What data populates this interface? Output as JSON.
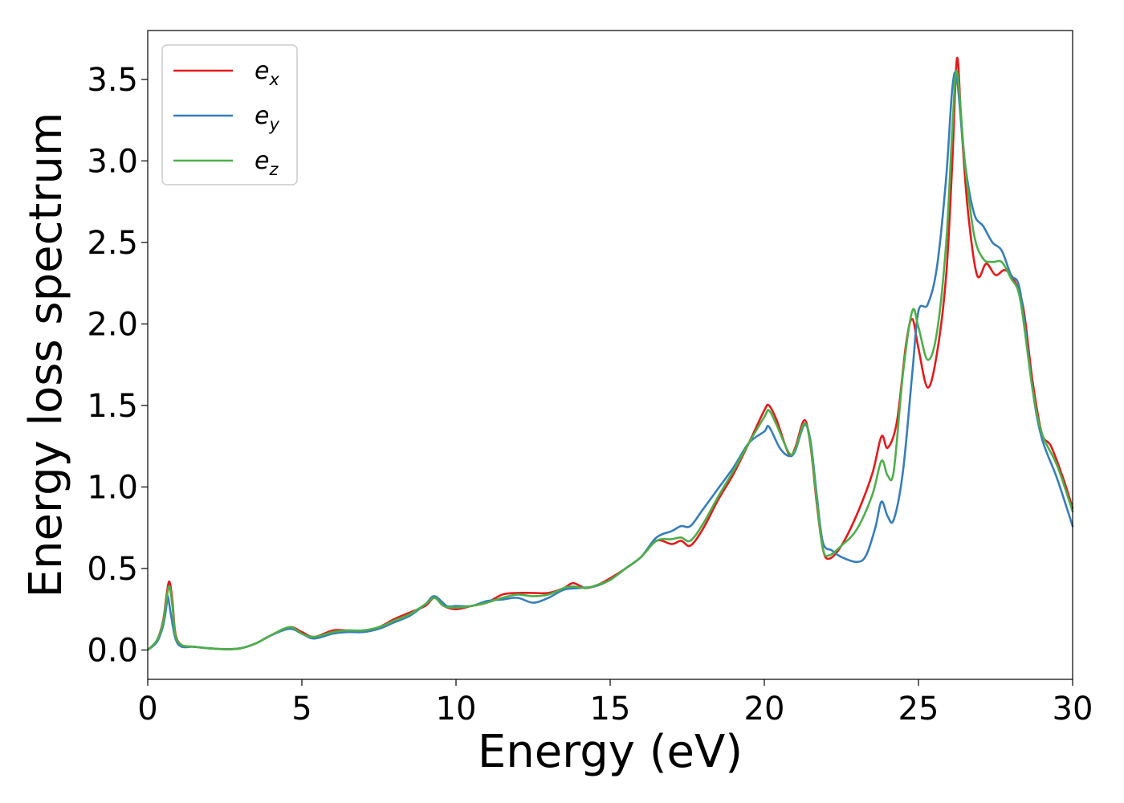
{
  "chart_data": {
    "type": "line",
    "xlabel": "Energy (eV)",
    "ylabel": "Energy loss spectrum",
    "xlim": [
      0,
      30
    ],
    "ylim": [
      -0.18,
      3.8
    ],
    "xticks": [
      0,
      5,
      10,
      15,
      20,
      25,
      30
    ],
    "xtick_labels": [
      "0",
      "5",
      "10",
      "15",
      "20",
      "25",
      "30"
    ],
    "yticks": [
      0.0,
      0.5,
      1.0,
      1.5,
      2.0,
      2.5,
      3.0,
      3.5
    ],
    "ytick_labels": [
      "0.0",
      "0.5",
      "1.0",
      "1.5",
      "2.0",
      "2.5",
      "3.0",
      "3.5"
    ],
    "grid": false,
    "legend": "top-left",
    "series": [
      {
        "name": "e",
        "sub": "x",
        "color": "#e41a1c",
        "points": [
          [
            0,
            0.0
          ],
          [
            0.3,
            0.06
          ],
          [
            0.5,
            0.18
          ],
          [
            0.6,
            0.32
          ],
          [
            0.7,
            0.42
          ],
          [
            0.8,
            0.3
          ],
          [
            0.9,
            0.1
          ],
          [
            1.1,
            0.03
          ],
          [
            1.5,
            0.02
          ],
          [
            2.0,
            0.01
          ],
          [
            2.5,
            0.005
          ],
          [
            3.0,
            0.01
          ],
          [
            3.5,
            0.04
          ],
          [
            4.0,
            0.09
          ],
          [
            4.6,
            0.14
          ],
          [
            5.0,
            0.11
          ],
          [
            5.4,
            0.08
          ],
          [
            6.0,
            0.12
          ],
          [
            6.5,
            0.12
          ],
          [
            7.0,
            0.12
          ],
          [
            7.5,
            0.14
          ],
          [
            8.0,
            0.19
          ],
          [
            8.5,
            0.23
          ],
          [
            9.0,
            0.27
          ],
          [
            9.3,
            0.32
          ],
          [
            9.6,
            0.27
          ],
          [
            10.0,
            0.25
          ],
          [
            10.5,
            0.27
          ],
          [
            11.0,
            0.29
          ],
          [
            11.5,
            0.34
          ],
          [
            12.0,
            0.35
          ],
          [
            12.5,
            0.35
          ],
          [
            13.0,
            0.35
          ],
          [
            13.5,
            0.38
          ],
          [
            13.8,
            0.41
          ],
          [
            14.2,
            0.38
          ],
          [
            14.6,
            0.4
          ],
          [
            15.0,
            0.44
          ],
          [
            15.5,
            0.5
          ],
          [
            16.0,
            0.57
          ],
          [
            16.5,
            0.67
          ],
          [
            17.0,
            0.65
          ],
          [
            17.3,
            0.67
          ],
          [
            17.6,
            0.64
          ],
          [
            18.0,
            0.74
          ],
          [
            18.5,
            0.92
          ],
          [
            19.0,
            1.08
          ],
          [
            19.5,
            1.27
          ],
          [
            20.0,
            1.47
          ],
          [
            20.15,
            1.5
          ],
          [
            20.4,
            1.41
          ],
          [
            20.8,
            1.2
          ],
          [
            21.0,
            1.24
          ],
          [
            21.3,
            1.41
          ],
          [
            21.5,
            1.25
          ],
          [
            21.7,
            0.9
          ],
          [
            21.9,
            0.62
          ],
          [
            22.1,
            0.56
          ],
          [
            22.5,
            0.64
          ],
          [
            23.0,
            0.83
          ],
          [
            23.5,
            1.08
          ],
          [
            23.8,
            1.31
          ],
          [
            24.0,
            1.24
          ],
          [
            24.3,
            1.4
          ],
          [
            24.6,
            1.88
          ],
          [
            24.8,
            2.03
          ],
          [
            25.0,
            1.85
          ],
          [
            25.3,
            1.61
          ],
          [
            25.6,
            1.82
          ],
          [
            25.9,
            2.3
          ],
          [
            26.1,
            3.0
          ],
          [
            26.25,
            3.63
          ],
          [
            26.4,
            3.2
          ],
          [
            26.6,
            2.7
          ],
          [
            26.9,
            2.3
          ],
          [
            27.2,
            2.37
          ],
          [
            27.5,
            2.3
          ],
          [
            27.8,
            2.33
          ],
          [
            28.1,
            2.27
          ],
          [
            28.4,
            2.1
          ],
          [
            28.7,
            1.65
          ],
          [
            29.0,
            1.33
          ],
          [
            29.3,
            1.25
          ],
          [
            29.7,
            1.05
          ],
          [
            30.0,
            0.87
          ]
        ]
      },
      {
        "name": "e",
        "sub": "y",
        "color": "#377eb8",
        "points": [
          [
            0,
            0.0
          ],
          [
            0.3,
            0.05
          ],
          [
            0.5,
            0.15
          ],
          [
            0.6,
            0.26
          ],
          [
            0.65,
            0.33
          ],
          [
            0.75,
            0.22
          ],
          [
            0.9,
            0.07
          ],
          [
            1.1,
            0.02
          ],
          [
            1.5,
            0.02
          ],
          [
            2.0,
            0.01
          ],
          [
            2.5,
            0.005
          ],
          [
            3.0,
            0.01
          ],
          [
            3.5,
            0.04
          ],
          [
            4.0,
            0.09
          ],
          [
            4.6,
            0.13
          ],
          [
            5.0,
            0.1
          ],
          [
            5.4,
            0.07
          ],
          [
            6.0,
            0.1
          ],
          [
            6.5,
            0.11
          ],
          [
            7.0,
            0.11
          ],
          [
            7.5,
            0.13
          ],
          [
            8.0,
            0.17
          ],
          [
            8.5,
            0.21
          ],
          [
            9.0,
            0.28
          ],
          [
            9.3,
            0.33
          ],
          [
            9.7,
            0.27
          ],
          [
            10.0,
            0.27
          ],
          [
            10.5,
            0.27
          ],
          [
            11.0,
            0.3
          ],
          [
            11.5,
            0.31
          ],
          [
            12.0,
            0.32
          ],
          [
            12.5,
            0.29
          ],
          [
            13.0,
            0.32
          ],
          [
            13.5,
            0.37
          ],
          [
            14.0,
            0.38
          ],
          [
            14.5,
            0.39
          ],
          [
            15.0,
            0.43
          ],
          [
            15.5,
            0.5
          ],
          [
            16.0,
            0.57
          ],
          [
            16.5,
            0.69
          ],
          [
            17.0,
            0.73
          ],
          [
            17.3,
            0.76
          ],
          [
            17.6,
            0.76
          ],
          [
            18.0,
            0.86
          ],
          [
            18.5,
            0.99
          ],
          [
            19.0,
            1.12
          ],
          [
            19.5,
            1.27
          ],
          [
            20.0,
            1.34
          ],
          [
            20.15,
            1.37
          ],
          [
            20.5,
            1.24
          ],
          [
            20.8,
            1.19
          ],
          [
            21.0,
            1.22
          ],
          [
            21.3,
            1.38
          ],
          [
            21.5,
            1.28
          ],
          [
            21.7,
            0.95
          ],
          [
            21.9,
            0.66
          ],
          [
            22.2,
            0.61
          ],
          [
            22.5,
            0.57
          ],
          [
            23.0,
            0.54
          ],
          [
            23.3,
            0.58
          ],
          [
            23.6,
            0.75
          ],
          [
            23.8,
            0.91
          ],
          [
            24.0,
            0.82
          ],
          [
            24.2,
            0.8
          ],
          [
            24.5,
            1.1
          ],
          [
            24.8,
            1.7
          ],
          [
            25.0,
            2.08
          ],
          [
            25.3,
            2.12
          ],
          [
            25.6,
            2.35
          ],
          [
            25.9,
            2.9
          ],
          [
            26.1,
            3.45
          ],
          [
            26.25,
            3.5
          ],
          [
            26.5,
            3.0
          ],
          [
            26.8,
            2.68
          ],
          [
            27.1,
            2.6
          ],
          [
            27.4,
            2.5
          ],
          [
            27.7,
            2.45
          ],
          [
            28.0,
            2.3
          ],
          [
            28.3,
            2.2
          ],
          [
            28.7,
            1.6
          ],
          [
            29.0,
            1.3
          ],
          [
            29.5,
            1.05
          ],
          [
            30.0,
            0.76
          ]
        ]
      },
      {
        "name": "e",
        "sub": "z",
        "color": "#4daf4a",
        "points": [
          [
            0,
            0.0
          ],
          [
            0.3,
            0.06
          ],
          [
            0.5,
            0.17
          ],
          [
            0.6,
            0.3
          ],
          [
            0.7,
            0.39
          ],
          [
            0.8,
            0.27
          ],
          [
            0.9,
            0.09
          ],
          [
            1.1,
            0.03
          ],
          [
            1.5,
            0.02
          ],
          [
            2.0,
            0.01
          ],
          [
            2.5,
            0.005
          ],
          [
            3.0,
            0.01
          ],
          [
            3.5,
            0.04
          ],
          [
            4.0,
            0.09
          ],
          [
            4.6,
            0.14
          ],
          [
            5.0,
            0.1
          ],
          [
            5.4,
            0.08
          ],
          [
            6.0,
            0.11
          ],
          [
            6.5,
            0.12
          ],
          [
            7.0,
            0.12
          ],
          [
            7.5,
            0.14
          ],
          [
            8.0,
            0.18
          ],
          [
            8.5,
            0.22
          ],
          [
            9.0,
            0.28
          ],
          [
            9.3,
            0.32
          ],
          [
            9.6,
            0.27
          ],
          [
            10.0,
            0.26
          ],
          [
            10.5,
            0.27
          ],
          [
            11.0,
            0.29
          ],
          [
            11.5,
            0.32
          ],
          [
            12.0,
            0.34
          ],
          [
            12.5,
            0.33
          ],
          [
            13.0,
            0.34
          ],
          [
            13.5,
            0.38
          ],
          [
            13.8,
            0.39
          ],
          [
            14.2,
            0.38
          ],
          [
            14.6,
            0.4
          ],
          [
            15.0,
            0.43
          ],
          [
            15.5,
            0.5
          ],
          [
            16.0,
            0.57
          ],
          [
            16.5,
            0.67
          ],
          [
            17.0,
            0.68
          ],
          [
            17.3,
            0.69
          ],
          [
            17.6,
            0.67
          ],
          [
            18.0,
            0.77
          ],
          [
            18.5,
            0.94
          ],
          [
            19.0,
            1.1
          ],
          [
            19.5,
            1.27
          ],
          [
            20.0,
            1.43
          ],
          [
            20.15,
            1.47
          ],
          [
            20.4,
            1.38
          ],
          [
            20.8,
            1.21
          ],
          [
            21.0,
            1.23
          ],
          [
            21.3,
            1.39
          ],
          [
            21.5,
            1.26
          ],
          [
            21.7,
            0.92
          ],
          [
            21.9,
            0.62
          ],
          [
            22.1,
            0.58
          ],
          [
            22.5,
            0.64
          ],
          [
            23.0,
            0.74
          ],
          [
            23.5,
            0.95
          ],
          [
            23.8,
            1.16
          ],
          [
            24.0,
            1.07
          ],
          [
            24.2,
            1.1
          ],
          [
            24.5,
            1.7
          ],
          [
            24.8,
            2.08
          ],
          [
            25.0,
            1.98
          ],
          [
            25.3,
            1.78
          ],
          [
            25.6,
            1.95
          ],
          [
            25.9,
            2.5
          ],
          [
            26.1,
            3.2
          ],
          [
            26.25,
            3.55
          ],
          [
            26.5,
            3.0
          ],
          [
            26.8,
            2.55
          ],
          [
            27.1,
            2.4
          ],
          [
            27.4,
            2.38
          ],
          [
            27.7,
            2.38
          ],
          [
            28.0,
            2.28
          ],
          [
            28.3,
            2.15
          ],
          [
            28.7,
            1.6
          ],
          [
            29.0,
            1.33
          ],
          [
            29.5,
            1.13
          ],
          [
            30.0,
            0.85
          ]
        ]
      }
    ]
  }
}
